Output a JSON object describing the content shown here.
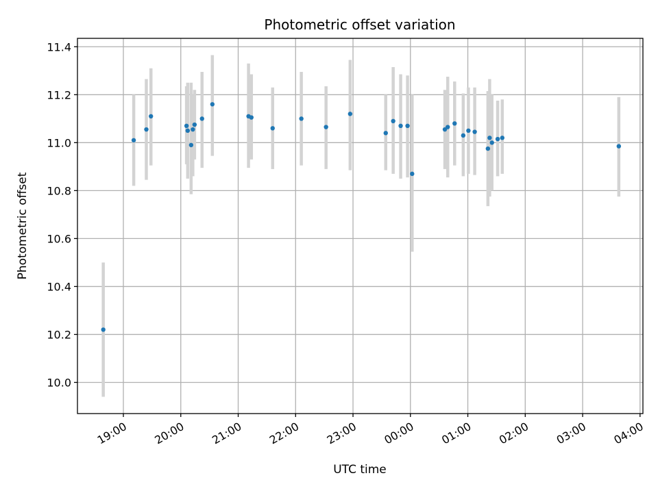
{
  "chart_data": {
    "type": "scatter",
    "title": "Photometric offset variation",
    "xlabel": "UTC time",
    "ylabel": "Photometric offset",
    "x_unit": "UTC time (hours, continuing past midnight)",
    "xlim": [
      18.2,
      28.05
    ],
    "ylim": [
      9.87,
      11.435
    ],
    "xticks": [
      {
        "value": 19,
        "label": "19:00"
      },
      {
        "value": 20,
        "label": "20:00"
      },
      {
        "value": 21,
        "label": "21:00"
      },
      {
        "value": 22,
        "label": "22:00"
      },
      {
        "value": 23,
        "label": "23:00"
      },
      {
        "value": 24,
        "label": "00:00"
      },
      {
        "value": 25,
        "label": "01:00"
      },
      {
        "value": 26,
        "label": "02:00"
      },
      {
        "value": 27,
        "label": "03:00"
      },
      {
        "value": 28,
        "label": "04:00"
      }
    ],
    "yticks": [
      {
        "value": 10.0,
        "label": "10.0"
      },
      {
        "value": 10.2,
        "label": "10.2"
      },
      {
        "value": 10.4,
        "label": "10.4"
      },
      {
        "value": 10.6,
        "label": "10.6"
      },
      {
        "value": 10.8,
        "label": "10.8"
      },
      {
        "value": 11.0,
        "label": "11.0"
      },
      {
        "value": 11.2,
        "label": "11.2"
      },
      {
        "value": 11.4,
        "label": "11.4"
      }
    ],
    "grid": true,
    "marker_color": "#1f77b4",
    "errorbar_color": "#d3d3d3",
    "series": [
      {
        "points": [
          {
            "x": 18.65,
            "y": 10.22,
            "low": 9.94,
            "high": 10.5
          },
          {
            "x": 19.18,
            "y": 11.01,
            "low": 10.82,
            "high": 11.2
          },
          {
            "x": 19.4,
            "y": 11.055,
            "low": 10.845,
            "high": 11.265
          },
          {
            "x": 19.48,
            "y": 11.11,
            "low": 10.905,
            "high": 11.31
          },
          {
            "x": 20.1,
            "y": 11.07,
            "low": 10.91,
            "high": 11.235
          },
          {
            "x": 20.12,
            "y": 11.05,
            "low": 10.85,
            "high": 11.25
          },
          {
            "x": 20.18,
            "y": 10.99,
            "low": 10.785,
            "high": 11.25
          },
          {
            "x": 20.21,
            "y": 11.055,
            "low": 10.86,
            "high": 11.2
          },
          {
            "x": 20.24,
            "y": 11.075,
            "low": 10.93,
            "high": 11.22
          },
          {
            "x": 20.37,
            "y": 11.1,
            "low": 10.895,
            "high": 11.295
          },
          {
            "x": 20.55,
            "y": 11.16,
            "low": 10.945,
            "high": 11.365
          },
          {
            "x": 21.18,
            "y": 11.11,
            "low": 10.895,
            "high": 11.33
          },
          {
            "x": 21.23,
            "y": 11.105,
            "low": 10.93,
            "high": 11.285
          },
          {
            "x": 21.6,
            "y": 11.06,
            "low": 10.89,
            "high": 11.23
          },
          {
            "x": 22.1,
            "y": 11.1,
            "low": 10.905,
            "high": 11.295
          },
          {
            "x": 22.53,
            "y": 11.065,
            "low": 10.89,
            "high": 11.235
          },
          {
            "x": 22.95,
            "y": 11.12,
            "low": 10.885,
            "high": 11.345
          },
          {
            "x": 23.57,
            "y": 11.04,
            "low": 10.885,
            "high": 11.2
          },
          {
            "x": 23.7,
            "y": 11.09,
            "low": 10.87,
            "high": 11.315
          },
          {
            "x": 23.83,
            "y": 11.07,
            "low": 10.85,
            "high": 11.285
          },
          {
            "x": 23.95,
            "y": 11.07,
            "low": 10.855,
            "high": 11.28
          },
          {
            "x": 24.03,
            "y": 10.87,
            "low": 10.545,
            "high": 11.2
          },
          {
            "x": 24.6,
            "y": 11.055,
            "low": 10.89,
            "high": 11.22
          },
          {
            "x": 24.65,
            "y": 11.065,
            "low": 10.855,
            "high": 11.275
          },
          {
            "x": 24.77,
            "y": 11.08,
            "low": 10.905,
            "high": 11.255
          },
          {
            "x": 24.92,
            "y": 11.03,
            "low": 10.86,
            "high": 11.205
          },
          {
            "x": 25.01,
            "y": 11.05,
            "low": 10.87,
            "high": 11.23
          },
          {
            "x": 25.12,
            "y": 11.045,
            "low": 10.865,
            "high": 11.23
          },
          {
            "x": 25.35,
            "y": 10.975,
            "low": 10.735,
            "high": 11.215
          },
          {
            "x": 25.38,
            "y": 11.02,
            "low": 10.775,
            "high": 11.265
          },
          {
            "x": 25.42,
            "y": 11.0,
            "low": 10.8,
            "high": 11.2
          },
          {
            "x": 25.52,
            "y": 11.015,
            "low": 10.86,
            "high": 11.175
          },
          {
            "x": 25.6,
            "y": 11.02,
            "low": 10.87,
            "high": 11.18
          },
          {
            "x": 27.63,
            "y": 10.985,
            "low": 10.775,
            "high": 11.19
          }
        ]
      }
    ]
  }
}
